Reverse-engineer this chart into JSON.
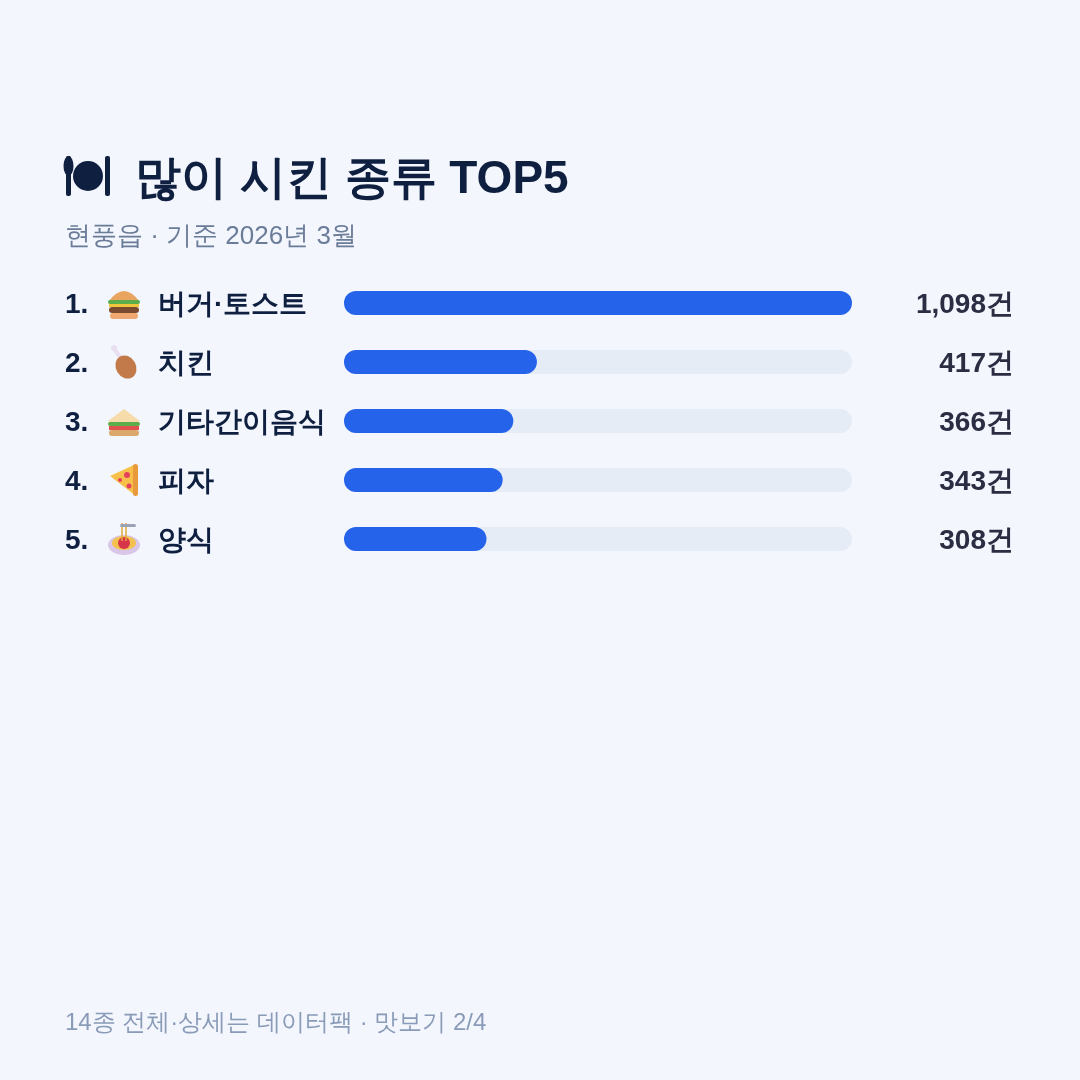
{
  "chart_data": {
    "type": "bar",
    "orientation": "horizontal",
    "title": "많이 시킨 종류 TOP5",
    "subtitle": "현풍읍 · 기준 2026년 3월",
    "categories": [
      "1. 버거·토스트",
      "2. 치킨",
      "3. 기타간이음식",
      "4. 피자",
      "5. 양식"
    ],
    "values": [
      1098,
      417,
      366,
      343,
      308
    ],
    "value_labels": [
      "1,098건",
      "417건",
      "366건",
      "343건",
      "308건"
    ],
    "color": "#2563eb",
    "annotations": [
      "14종 전체·상세는 데이터팩 · 맛보기 2/4"
    ]
  }
}
